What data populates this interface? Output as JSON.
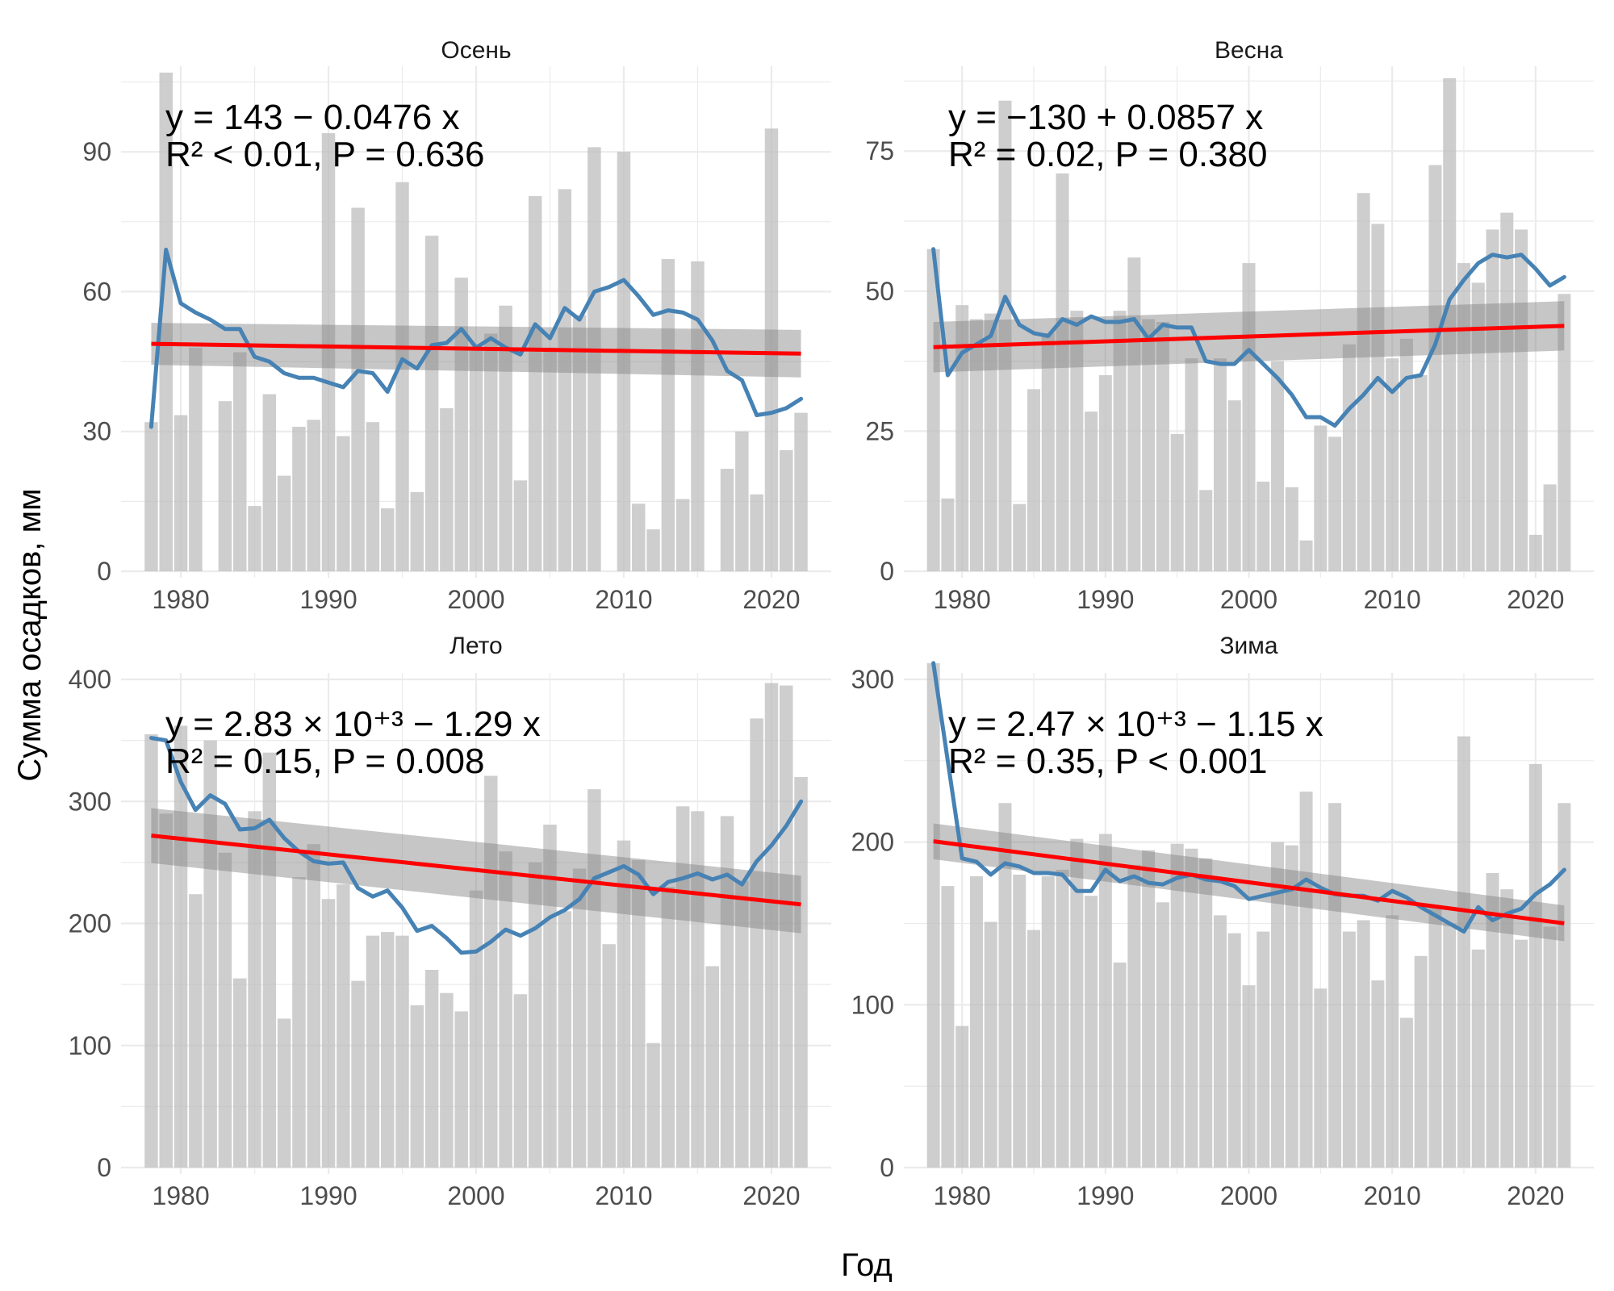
{
  "figure": {
    "xlabel": "Год",
    "ylabel": "Сумма осадков, мм"
  },
  "colors": {
    "bar": "#bdbdbd",
    "smooth": "#4682b4",
    "trend": "#ff0000",
    "ribbon": "#808080",
    "grid": "#ebebeb"
  },
  "chart_data": [
    {
      "type": "bar",
      "title": "Осень",
      "xlim": [
        1976.5,
        2023.5
      ],
      "ylim": [
        0,
        107
      ],
      "xticks": [
        1980,
        1990,
        2000,
        2010,
        2020
      ],
      "yticks": [
        0,
        30,
        60,
        90
      ],
      "equation": "y = 143 − 0.0476 x",
      "stats": "R² < 0.01, P = 0.636",
      "years": [
        1978,
        1979,
        1980,
        1981,
        1982,
        1983,
        1984,
        1985,
        1986,
        1987,
        1988,
        1989,
        1990,
        1991,
        1992,
        1993,
        1994,
        1995,
        1996,
        1997,
        1998,
        1999,
        2000,
        2001,
        2002,
        2003,
        2004,
        2005,
        2006,
        2007,
        2008,
        2009,
        2010,
        2011,
        2012,
        2013,
        2014,
        2015,
        2016,
        2017,
        2018,
        2019,
        2020,
        2021,
        2022
      ],
      "values": [
        32,
        107,
        33.5,
        48,
        0,
        36.5,
        47,
        14,
        38,
        20.5,
        31,
        32.5,
        94,
        29,
        78,
        32,
        13.5,
        83.5,
        17,
        72,
        35,
        63,
        48,
        51,
        57,
        19.5,
        80.5,
        48,
        82,
        55,
        91,
        0,
        90,
        14.5,
        9,
        67,
        15.5,
        66.5,
        0,
        22,
        30,
        16.5,
        95,
        26,
        34
      ],
      "smooth": [
        31,
        69,
        57.5,
        55.5,
        54,
        52,
        52,
        46,
        45,
        42.5,
        41.5,
        41.5,
        40.5,
        39.5,
        43,
        42.5,
        38.5,
        45.5,
        43.5,
        48.5,
        49,
        52,
        48,
        50,
        48,
        46.5,
        53,
        50,
        56.5,
        54,
        60,
        61,
        62.5,
        59,
        55,
        56,
        55.5,
        54,
        49.5,
        43,
        41,
        33.5,
        34,
        35,
        37
      ],
      "trend": [
        48.8,
        46.7
      ],
      "ribbon_lower": [
        44.3,
        41.6
      ],
      "ribbon_upper": [
        53.3,
        51.8
      ]
    },
    {
      "type": "bar",
      "title": "Весна",
      "xlim": [
        1976.5,
        2023.5
      ],
      "ylim": [
        0,
        89
      ],
      "xticks": [
        1980,
        1990,
        2000,
        2010,
        2020
      ],
      "yticks": [
        0,
        25,
        50,
        75
      ],
      "equation": "y = −130 + 0.0857 x",
      "stats": "R² = 0.02, P = 0.380",
      "years": [
        1978,
        1979,
        1980,
        1981,
        1982,
        1983,
        1984,
        1985,
        1986,
        1987,
        1988,
        1989,
        1990,
        1991,
        1992,
        1993,
        1994,
        1995,
        1996,
        1997,
        1998,
        1999,
        2000,
        2001,
        2002,
        2003,
        2004,
        2005,
        2006,
        2007,
        2008,
        2009,
        2010,
        2011,
        2012,
        2013,
        2014,
        2015,
        2016,
        2017,
        2018,
        2019,
        2020,
        2021,
        2022
      ],
      "values": [
        57.5,
        13,
        47.5,
        45,
        46,
        84,
        12,
        32.5,
        42.5,
        71,
        46.5,
        28.5,
        35,
        46.5,
        56,
        45,
        44.5,
        24.5,
        38,
        14.5,
        38,
        30.5,
        55,
        16,
        37.5,
        15,
        5.5,
        26,
        24,
        40.5,
        67.5,
        62,
        38,
        41.5,
        35,
        72.5,
        88,
        55,
        51.5,
        61,
        64,
        61,
        6.5,
        15.5,
        49.5
      ],
      "smooth": [
        57.5,
        35,
        39,
        40.5,
        42,
        49,
        44,
        42.5,
        42,
        45,
        44,
        45.5,
        44.5,
        44.5,
        45,
        41.5,
        44,
        43.5,
        43.5,
        37.5,
        37,
        37,
        39.5,
        37,
        34.5,
        31.5,
        27.5,
        27.5,
        26,
        29,
        31.5,
        34.5,
        32,
        34.5,
        35,
        40.5,
        48.5,
        52,
        55,
        56.5,
        56,
        56.5,
        54,
        51,
        52.5
      ],
      "trend": [
        40.0,
        43.8
      ],
      "ribbon_lower": [
        35.5,
        39.4
      ],
      "ribbon_upper": [
        44.5,
        48.2
      ]
    },
    {
      "type": "bar",
      "title": "Лето",
      "xlim": [
        1976.5,
        2023.5
      ],
      "ylim": [
        0,
        400
      ],
      "xticks": [
        1980,
        1990,
        2000,
        2010,
        2020
      ],
      "yticks": [
        0,
        100,
        200,
        300,
        400
      ],
      "equation": "y = 2.83 × 10⁺³ − 1.29 x",
      "stats": "R² = 0.15, P = 0.008",
      "years": [
        1978,
        1979,
        1980,
        1981,
        1982,
        1983,
        1984,
        1985,
        1986,
        1987,
        1988,
        1989,
        1990,
        1991,
        1992,
        1993,
        1994,
        1995,
        1996,
        1997,
        1998,
        1999,
        2000,
        2001,
        2002,
        2003,
        2004,
        2005,
        2006,
        2007,
        2008,
        2009,
        2010,
        2011,
        2012,
        2013,
        2014,
        2015,
        2016,
        2017,
        2018,
        2019,
        2020,
        2021,
        2022
      ],
      "values": [
        355,
        290,
        362,
        224,
        350,
        258,
        155,
        292,
        340,
        122,
        238,
        265,
        220,
        232,
        153,
        190,
        193,
        190,
        133,
        162,
        143,
        128,
        227,
        321,
        259,
        142,
        250,
        281,
        210,
        245,
        310,
        183,
        268,
        252,
        102,
        230,
        296,
        292,
        165,
        288,
        235,
        368,
        397,
        395,
        320
      ],
      "smooth": [
        352,
        350,
        316,
        293,
        305,
        298,
        277,
        278,
        285,
        270,
        259,
        251,
        249,
        250,
        229,
        222,
        227,
        213,
        194,
        198,
        188,
        176,
        177,
        185,
        195,
        190,
        196,
        205,
        211,
        220,
        237,
        242,
        247,
        240,
        224,
        234,
        237,
        241,
        236,
        240,
        232,
        251,
        264,
        280,
        300
      ],
      "trend": [
        272.0,
        215.6
      ],
      "ribbon_lower": [
        249.5,
        192.0
      ],
      "ribbon_upper": [
        294.5,
        239.2
      ]
    },
    {
      "type": "bar",
      "title": "Зима",
      "xlim": [
        1976.5,
        2023.5
      ],
      "ylim": [
        0,
        300
      ],
      "xticks": [
        1980,
        1990,
        2000,
        2010,
        2020
      ],
      "yticks": [
        0,
        100,
        200,
        300
      ],
      "equation": "y = 2.47 × 10⁺³ − 1.15 x",
      "stats": "R² = 0.35, P < 0.001",
      "years": [
        1978,
        1979,
        1980,
        1981,
        1982,
        1983,
        1984,
        1985,
        1986,
        1987,
        1988,
        1989,
        1990,
        1991,
        1992,
        1993,
        1994,
        1995,
        1996,
        1997,
        1998,
        1999,
        2000,
        2001,
        2002,
        2003,
        2004,
        2005,
        2006,
        2007,
        2008,
        2009,
        2010,
        2011,
        2012,
        2013,
        2014,
        2015,
        2016,
        2017,
        2018,
        2019,
        2020,
        2021,
        2022
      ],
      "values": [
        310,
        173,
        87,
        179,
        151,
        224,
        180,
        146,
        179,
        183,
        202,
        167,
        205,
        126,
        186,
        195,
        163,
        199,
        196,
        190,
        155,
        144,
        112,
        145,
        200,
        198,
        231,
        110,
        224,
        145,
        152,
        115,
        155,
        92,
        130,
        160,
        150,
        265,
        134,
        181,
        171,
        140,
        248,
        148,
        224
      ],
      "smooth": [
        310,
        250,
        190,
        188,
        180,
        187,
        185,
        181,
        181,
        180,
        170,
        170,
        183,
        176,
        179,
        175,
        174,
        178,
        180,
        177,
        176,
        173,
        165,
        167,
        169,
        171,
        177,
        172,
        168,
        167,
        167,
        164,
        170,
        166,
        160,
        155,
        150,
        145,
        160,
        152,
        156,
        159,
        168,
        174,
        183
      ],
      "trend": [
        200.5,
        150.1
      ],
      "ribbon_lower": [
        189.5,
        139.1
      ],
      "ribbon_upper": [
        211.5,
        161.1
      ]
    }
  ]
}
